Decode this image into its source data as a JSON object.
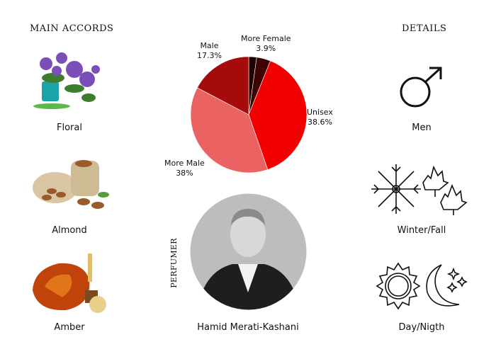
{
  "main_accords": {
    "title": "MAIN ACCORDS",
    "items": [
      {
        "label": "Floral",
        "icon": "floral-plant-icon"
      },
      {
        "label": "Almond",
        "icon": "almond-icon"
      },
      {
        "label": "Amber",
        "icon": "amber-icon"
      }
    ]
  },
  "details": {
    "title": "DETAILS",
    "items": [
      {
        "label": "Men",
        "icon": "male-symbol-icon"
      },
      {
        "label": "Winter/Fall",
        "icon": "snowflake-leaf-icon"
      },
      {
        "label": "Day/Nigth",
        "icon": "sun-moon-icon"
      }
    ]
  },
  "perfumer": {
    "title": "PERFUMER",
    "name": "Hamid Merati-Kashani"
  },
  "chart_data": {
    "type": "pie",
    "start": "top, clockwise",
    "slices": [
      {
        "name": "",
        "value": 2.2,
        "label": "",
        "color": "#1c0202"
      },
      {
        "name": "More Female",
        "value": 3.9,
        "label": "3.9%",
        "color": "#3e0404"
      },
      {
        "name": "Unisex",
        "value": 38.6,
        "label": "38.6%",
        "color": "#f20000"
      },
      {
        "name": "More Male",
        "value": 38,
        "label": "38%",
        "color": "#ea6262"
      },
      {
        "name": "Male",
        "value": 17.3,
        "label": "17.3%",
        "color": "#a50b0b"
      }
    ]
  }
}
